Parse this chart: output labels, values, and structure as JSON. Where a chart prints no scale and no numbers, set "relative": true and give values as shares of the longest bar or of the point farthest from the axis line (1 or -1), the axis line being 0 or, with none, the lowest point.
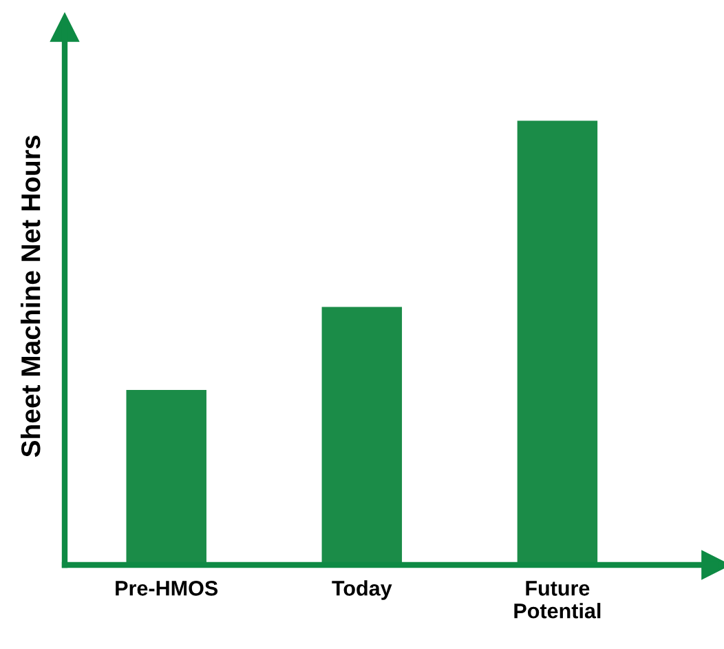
{
  "chart_data": {
    "type": "bar",
    "ylabel": "Sheet Machine Net Hours",
    "categories": [
      "Pre-HMOS",
      "Today",
      "Future\nPotential"
    ],
    "values": [
      0.394,
      0.581,
      1
    ],
    "color": "#1b8c48",
    "relative": true,
    "grid": false,
    "legend": false
  }
}
